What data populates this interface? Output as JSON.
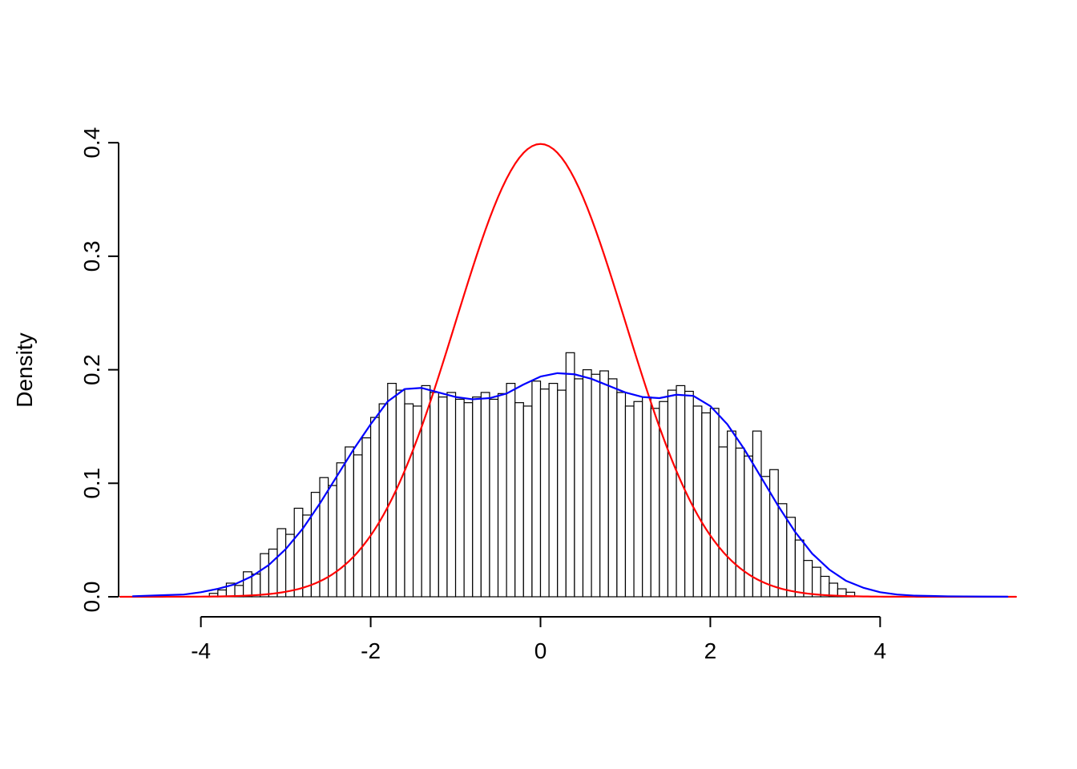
{
  "chart_data": {
    "type": "bar",
    "subtype": "histogram-with-density-overlays",
    "title": "",
    "xlabel": "",
    "ylabel": "Density",
    "x_tick_values": [
      -4,
      -2,
      0,
      2,
      4
    ],
    "x_tick_labels": [
      "-4",
      "-2",
      "0",
      "2",
      "4"
    ],
    "y_tick_values": [
      0.0,
      0.1,
      0.2,
      0.3,
      0.4
    ],
    "y_tick_labels": [
      "0.0",
      "0.1",
      "0.2",
      "0.3",
      "0.4"
    ],
    "x_range": [
      -4.95,
      5.62
    ],
    "y_range": [
      0,
      0.41
    ],
    "grid": false,
    "legend": "none",
    "colors": {
      "histogram_fill": "#ffffff",
      "histogram_stroke": "#000000",
      "kernel_density": "#0000ff",
      "normal_curve": "#ff0000",
      "axis": "#000000"
    },
    "histogram": {
      "bin_start": -3.9,
      "bin_width": 0.1,
      "heights": [
        0.003,
        0.006,
        0.012,
        0.01,
        0.022,
        0.02,
        0.038,
        0.042,
        0.06,
        0.055,
        0.078,
        0.072,
        0.092,
        0.105,
        0.098,
        0.118,
        0.132,
        0.125,
        0.14,
        0.158,
        0.17,
        0.188,
        0.182,
        0.17,
        0.168,
        0.186,
        0.18,
        0.176,
        0.18,
        0.174,
        0.171,
        0.176,
        0.18,
        0.174,
        0.179,
        0.188,
        0.171,
        0.168,
        0.19,
        0.183,
        0.188,
        0.182,
        0.215,
        0.192,
        0.2,
        0.196,
        0.199,
        0.192,
        0.18,
        0.168,
        0.172,
        0.176,
        0.166,
        0.172,
        0.182,
        0.186,
        0.181,
        0.168,
        0.162,
        0.166,
        0.132,
        0.146,
        0.131,
        0.124,
        0.146,
        0.106,
        0.112,
        0.082,
        0.07,
        0.05,
        0.032,
        0.026,
        0.018,
        0.012,
        0.007,
        0.004
      ]
    },
    "series": [
      {
        "name": "kernel-density-estimate",
        "type": "line",
        "color": "#0000ff",
        "points": [
          [
            -4.8,
            0.0005
          ],
          [
            -4.6,
            0.001
          ],
          [
            -4.4,
            0.0015
          ],
          [
            -4.2,
            0.002
          ],
          [
            -4.0,
            0.004
          ],
          [
            -3.8,
            0.007
          ],
          [
            -3.6,
            0.011
          ],
          [
            -3.4,
            0.018
          ],
          [
            -3.2,
            0.028
          ],
          [
            -3.0,
            0.042
          ],
          [
            -2.8,
            0.06
          ],
          [
            -2.6,
            0.082
          ],
          [
            -2.4,
            0.106
          ],
          [
            -2.2,
            0.13
          ],
          [
            -2.0,
            0.152
          ],
          [
            -1.8,
            0.172
          ],
          [
            -1.6,
            0.183
          ],
          [
            -1.4,
            0.184
          ],
          [
            -1.2,
            0.18
          ],
          [
            -1.0,
            0.176
          ],
          [
            -0.8,
            0.174
          ],
          [
            -0.6,
            0.175
          ],
          [
            -0.4,
            0.179
          ],
          [
            -0.2,
            0.187
          ],
          [
            0.0,
            0.194
          ],
          [
            0.2,
            0.197
          ],
          [
            0.4,
            0.196
          ],
          [
            0.6,
            0.192
          ],
          [
            0.8,
            0.186
          ],
          [
            1.0,
            0.18
          ],
          [
            1.2,
            0.176
          ],
          [
            1.4,
            0.175
          ],
          [
            1.6,
            0.178
          ],
          [
            1.8,
            0.177
          ],
          [
            2.0,
            0.168
          ],
          [
            2.2,
            0.152
          ],
          [
            2.4,
            0.13
          ],
          [
            2.6,
            0.105
          ],
          [
            2.8,
            0.08
          ],
          [
            3.0,
            0.057
          ],
          [
            3.2,
            0.038
          ],
          [
            3.4,
            0.024
          ],
          [
            3.6,
            0.014
          ],
          [
            3.8,
            0.008
          ],
          [
            4.0,
            0.004
          ],
          [
            4.2,
            0.002
          ],
          [
            4.4,
            0.001
          ],
          [
            4.6,
            0.0007
          ],
          [
            4.8,
            0.0004
          ],
          [
            5.0,
            0.0003
          ],
          [
            5.2,
            0.0002
          ],
          [
            5.5,
            0.0001
          ]
        ]
      },
      {
        "name": "standard-normal-pdf",
        "type": "normal_pdf",
        "color": "#ff0000",
        "mean": 0,
        "sd": 1,
        "peak_density": 0.3989
      }
    ]
  }
}
